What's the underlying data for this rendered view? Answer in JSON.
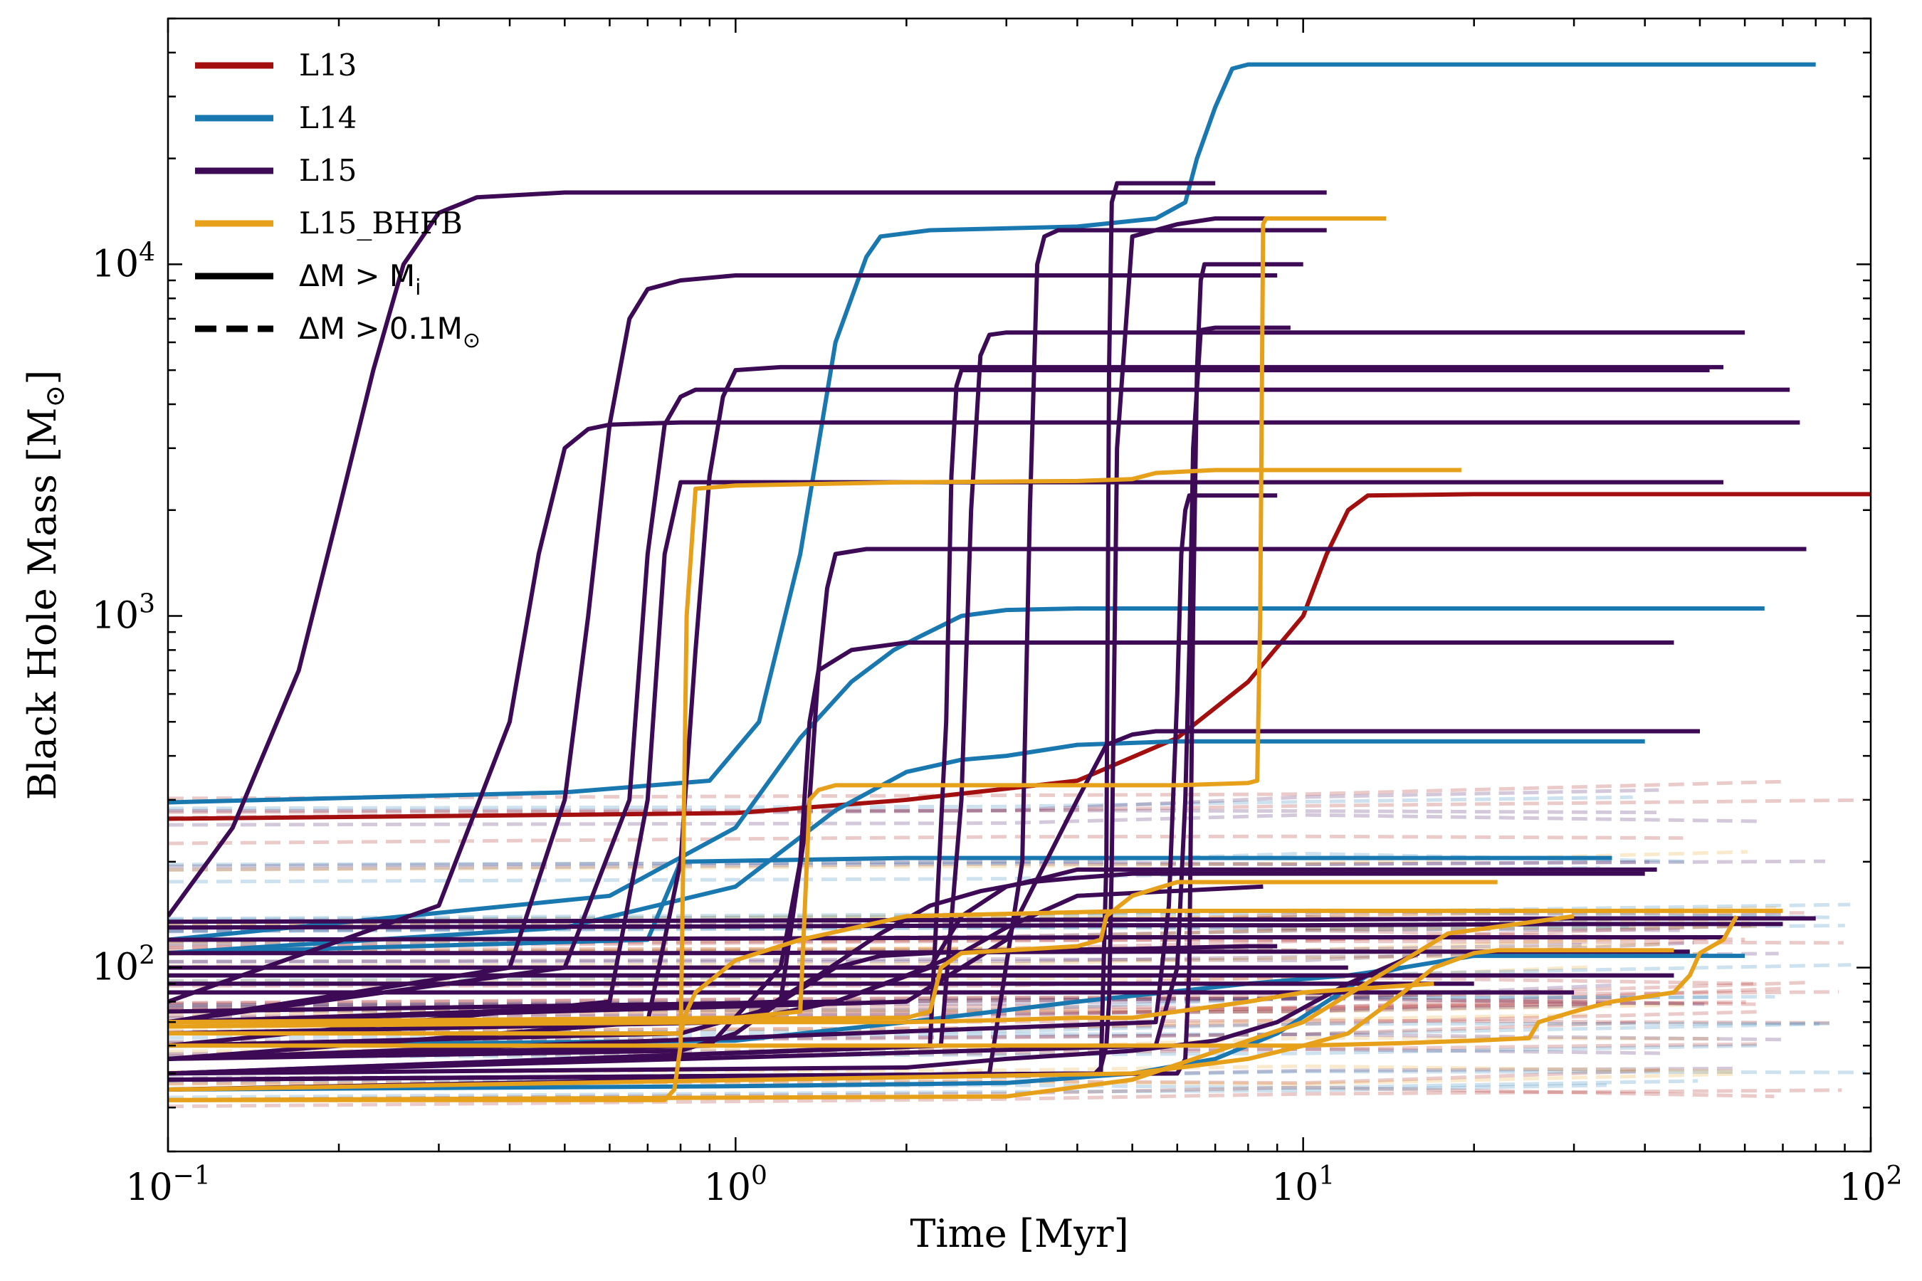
{
  "chart_data": {
    "type": "line",
    "xlabel": "Time [Myr]",
    "ylabel": "Black Hole Mass [M",
    "ylabel_sub": "⊙",
    "ylabel_close": "]",
    "xscale": "log",
    "yscale": "log",
    "xlim": [
      0.1,
      100
    ],
    "ylim": [
      30,
      50000
    ],
    "x_ticks": [
      {
        "value": 0.1,
        "base": "10",
        "exp": "−1"
      },
      {
        "value": 1,
        "base": "10",
        "exp": "0"
      },
      {
        "value": 10,
        "base": "10",
        "exp": "1"
      },
      {
        "value": 100,
        "base": "10",
        "exp": "2"
      }
    ],
    "y_ticks": [
      {
        "value": 100,
        "base": "10",
        "exp": "2"
      },
      {
        "value": 1000,
        "base": "10",
        "exp": "3"
      },
      {
        "value": 10000,
        "base": "10",
        "exp": "4"
      }
    ],
    "grid": false,
    "legend_position": "top-left",
    "legend": [
      {
        "label": "L13",
        "color": "#a30f0f",
        "dash": false,
        "font": "serif"
      },
      {
        "label": "L14",
        "color": "#1a78b0",
        "dash": false,
        "font": "serif"
      },
      {
        "label": "L15",
        "color": "#3d0a55",
        "dash": false,
        "font": "serif"
      },
      {
        "label": "L15_BHFB",
        "color": "#e6a01a",
        "dash": false,
        "font": "serif"
      },
      {
        "label": "ΔM > M",
        "sub": "i",
        "color": "#000000",
        "dash": false,
        "font": "sans"
      },
      {
        "label": "ΔM > 0.1M",
        "sub": "⊙",
        "color": "#000000",
        "dash": true,
        "font": "sans"
      }
    ],
    "colors": {
      "L13": "#a30f0f",
      "L14": "#1a78b0",
      "L15": "#3d0a55",
      "L15_BHFB": "#e6a01a"
    },
    "series": [
      {
        "run": "L13",
        "style": "solid",
        "x": [
          0.1,
          1,
          2,
          4,
          6,
          8,
          10,
          11,
          12,
          13,
          20,
          50,
          100
        ],
        "y": [
          265,
          275,
          300,
          340,
          450,
          650,
          1000,
          1500,
          2000,
          2200,
          2220,
          2220,
          2220
        ]
      },
      {
        "run": "L14",
        "style": "solid",
        "x": [
          0.1,
          0.5,
          0.9,
          1.1,
          1.3,
          1.5,
          1.7,
          1.8,
          2.2,
          4,
          5.5,
          6.2,
          6.5,
          7,
          7.5,
          8,
          80
        ],
        "y": [
          295,
          315,
          340,
          500,
          1500,
          6000,
          10500,
          12000,
          12500,
          12800,
          13500,
          15000,
          20000,
          28000,
          36000,
          37000,
          37000
        ]
      },
      {
        "run": "L14",
        "style": "solid",
        "x": [
          0.1,
          0.6,
          1,
          1.3,
          1.6,
          1.9,
          2.1,
          2.5,
          3,
          4,
          10,
          65
        ],
        "y": [
          120,
          160,
          250,
          450,
          650,
          800,
          870,
          1000,
          1040,
          1050,
          1050,
          1050
        ]
      },
      {
        "run": "L14",
        "style": "solid",
        "x": [
          0.1,
          0.5,
          1,
          1.5,
          2,
          2.5,
          3,
          4,
          6,
          10,
          40
        ],
        "y": [
          110,
          130,
          170,
          280,
          360,
          390,
          400,
          430,
          440,
          440,
          440
        ]
      },
      {
        "run": "L14",
        "style": "solid",
        "x": [
          0.1,
          0.7,
          0.8,
          2,
          4,
          10,
          35
        ],
        "y": [
          110,
          120,
          200,
          205,
          205,
          205,
          205
        ]
      },
      {
        "run": "L14",
        "style": "solid",
        "x": [
          0.1,
          1,
          2,
          4,
          8,
          12,
          15,
          20,
          60
        ],
        "y": [
          60,
          62,
          70,
          80,
          90,
          95,
          100,
          108,
          108
        ]
      },
      {
        "run": "L14",
        "style": "solid",
        "x": [
          0.1,
          1,
          3,
          5,
          7,
          9,
          11,
          13,
          15
        ],
        "y": [
          45,
          46,
          47,
          50,
          55,
          65,
          80,
          95,
          100
        ]
      },
      {
        "run": "L15",
        "style": "solid",
        "x": [
          0.1,
          0.13,
          0.17,
          0.2,
          0.23,
          0.26,
          0.3,
          0.35,
          0.5,
          11
        ],
        "y": [
          140,
          250,
          700,
          2000,
          5000,
          10000,
          14000,
          15500,
          16000,
          16000
        ]
      },
      {
        "run": "L15",
        "style": "solid",
        "x": [
          0.1,
          0.4,
          0.5,
          0.55,
          0.6,
          0.65,
          0.7,
          0.8,
          1,
          9
        ],
        "y": [
          70,
          100,
          300,
          1000,
          3500,
          7000,
          8500,
          9000,
          9300,
          9300
        ]
      },
      {
        "run": "L15",
        "style": "solid",
        "x": [
          0.1,
          0.3,
          0.4,
          0.45,
          0.5,
          0.55,
          0.6,
          0.8,
          1,
          75
        ],
        "y": [
          80,
          150,
          500,
          1500,
          3000,
          3400,
          3500,
          3550,
          3550,
          3550
        ]
      },
      {
        "run": "L15",
        "style": "solid",
        "x": [
          0.1,
          0.5,
          0.65,
          0.7,
          0.75,
          0.8,
          0.85,
          1,
          72
        ],
        "y": [
          70,
          100,
          300,
          1500,
          3500,
          4200,
          4400,
          4400,
          4400
        ]
      },
      {
        "run": "L15",
        "style": "solid",
        "x": [
          0.1,
          0.7,
          0.8,
          0.85,
          0.9,
          0.95,
          1,
          1.2,
          1.5,
          55
        ],
        "y": [
          55,
          70,
          200,
          800,
          2500,
          4200,
          5000,
          5100,
          5100,
          5100
        ]
      },
      {
        "run": "L15",
        "style": "solid",
        "x": [
          0.1,
          0.6,
          0.7,
          0.75,
          0.8,
          55
        ],
        "y": [
          60,
          80,
          300,
          1500,
          2400,
          2400
        ]
      },
      {
        "run": "L15",
        "style": "solid",
        "x": [
          0.1,
          0.9,
          1.2,
          1.3,
          1.35,
          1.4,
          1.5,
          1.6,
          2,
          45
        ],
        "y": [
          55,
          60,
          100,
          200,
          500,
          700,
          750,
          800,
          840,
          840
        ]
      },
      {
        "run": "L15",
        "style": "solid",
        "x": [
          0.1,
          1.2,
          1.35,
          1.4,
          1.45,
          1.5,
          1.7,
          77
        ],
        "y": [
          70,
          80,
          300,
          700,
          1200,
          1500,
          1550,
          1550
        ]
      },
      {
        "run": "L15",
        "style": "solid",
        "x": [
          0.1,
          2.3,
          2.5,
          2.6,
          2.7,
          2.8,
          3,
          60
        ],
        "y": [
          50,
          60,
          300,
          2000,
          5500,
          6300,
          6400,
          6400
        ]
      },
      {
        "run": "L15",
        "style": "solid",
        "x": [
          0.1,
          2.2,
          2.35,
          2.4,
          2.45,
          2.5,
          52
        ],
        "y": [
          50,
          60,
          500,
          2500,
          4500,
          5000,
          5000
        ]
      },
      {
        "run": "L15",
        "style": "solid",
        "x": [
          0.1,
          2.8,
          3.2,
          3.3,
          3.4,
          3.5,
          3.7,
          11
        ],
        "y": [
          45,
          50,
          200,
          2000,
          10000,
          12000,
          12500,
          12500
        ]
      },
      {
        "run": "L15",
        "style": "solid",
        "x": [
          0.1,
          4.4,
          4.5,
          4.55,
          4.6,
          4.7,
          7
        ],
        "y": [
          48,
          50,
          200,
          5000,
          15000,
          17000,
          17000
        ]
      },
      {
        "run": "L15",
        "style": "solid",
        "x": [
          0.1,
          4.3,
          4.4,
          4.5,
          4.55,
          4.6,
          4.7,
          5,
          6,
          7,
          9.5
        ],
        "y": [
          48,
          50,
          52,
          60,
          80,
          200,
          3000,
          12000,
          13000,
          13500,
          13500
        ]
      },
      {
        "run": "L15",
        "style": "solid",
        "x": [
          0.1,
          6,
          6.2,
          6.3,
          6.4,
          6.5,
          6.6,
          6.7,
          7,
          10
        ],
        "y": [
          48,
          50,
          55,
          100,
          1000,
          5000,
          9000,
          10000,
          10000,
          10000
        ]
      },
      {
        "run": "L15",
        "style": "solid",
        "x": [
          0.1,
          5.5,
          6,
          6.2,
          6.3,
          6.4,
          6.6,
          7,
          9.5
        ],
        "y": [
          50,
          60,
          100,
          300,
          800,
          3000,
          6500,
          6600,
          6600
        ]
      },
      {
        "run": "L15",
        "style": "solid",
        "x": [
          0.1,
          5.5,
          5.8,
          6,
          6.1,
          6.2,
          6.3,
          8,
          9
        ],
        "y": [
          55,
          70,
          150,
          600,
          1500,
          2000,
          2200,
          2200,
          2200
        ]
      },
      {
        "run": "L15",
        "style": "solid",
        "x": [
          0.1,
          1.5,
          2.2,
          2.5,
          3,
          3.5,
          4,
          6,
          8,
          42
        ],
        "y": [
          75,
          80,
          100,
          140,
          170,
          180,
          190,
          190,
          190,
          190
        ]
      },
      {
        "run": "L15",
        "style": "solid",
        "x": [
          0.1,
          2,
          3,
          4,
          4.5,
          5,
          5.5,
          6,
          8,
          50
        ],
        "y": [
          70,
          80,
          120,
          300,
          430,
          460,
          470,
          470,
          470,
          470
        ]
      },
      {
        "run": "L15",
        "style": "solid",
        "x": [
          0.1,
          1,
          1.5,
          2,
          2.5,
          3,
          4,
          8.5
        ],
        "y": [
          65,
          70,
          80,
          95,
          110,
          130,
          160,
          170
        ]
      },
      {
        "run": "L15",
        "style": "solid",
        "x": [
          0.1,
          0.8,
          1.1,
          1.4,
          1.8,
          2.2,
          2.7,
          3.3,
          4,
          5,
          40
        ],
        "y": [
          60,
          65,
          75,
          95,
          125,
          150,
          165,
          175,
          180,
          185,
          185
        ]
      },
      {
        "run": "L15",
        "style": "solid",
        "x": [
          0.1,
          0.8,
          1,
          1.2,
          1.5,
          1.8,
          2.2,
          3,
          5,
          8,
          9
        ],
        "y": [
          55,
          58,
          65,
          80,
          100,
          108,
          110,
          112,
          113,
          115,
          115
        ]
      },
      {
        "run": "L15",
        "style": "solid",
        "x": [
          0.1,
          2,
          3,
          5,
          7,
          9,
          12,
          16
        ],
        "y": [
          50,
          52,
          55,
          58,
          62,
          70,
          90,
          110
        ]
      },
      {
        "run": "L15",
        "style": "solid",
        "x": [
          0.1,
          1,
          5,
          10,
          30,
          80
        ],
        "y": [
          135,
          136,
          137,
          137,
          138,
          138
        ]
      },
      {
        "run": "L15",
        "style": "solid",
        "x": [
          0.1,
          1,
          5,
          10,
          30,
          70
        ],
        "y": [
          130,
          131,
          132,
          132,
          133,
          133
        ]
      },
      {
        "run": "L15",
        "style": "solid",
        "x": [
          0.1,
          1,
          5,
          10,
          30,
          55
        ],
        "y": [
          120,
          121,
          122,
          122,
          122,
          122
        ]
      },
      {
        "run": "L15",
        "style": "solid",
        "x": [
          0.1,
          1,
          5,
          10,
          30,
          48
        ],
        "y": [
          110,
          110,
          111,
          111,
          111,
          111
        ]
      },
      {
        "run": "L15",
        "style": "solid",
        "x": [
          0.1,
          1,
          5,
          10,
          30,
          45
        ],
        "y": [
          95,
          95,
          95,
          95,
          95,
          95
        ]
      },
      {
        "run": "L15",
        "style": "solid",
        "x": [
          0.1,
          1,
          5,
          10,
          30
        ],
        "y": [
          85,
          85,
          85,
          85,
          85
        ]
      },
      {
        "run": "L15",
        "style": "solid",
        "x": [
          0.1,
          1,
          5,
          20
        ],
        "y": [
          90,
          90,
          90,
          90
        ]
      },
      {
        "run": "L15",
        "style": "solid",
        "x": [
          0.1,
          1,
          5,
          12
        ],
        "y": [
          100,
          100,
          100,
          100
        ]
      },
      {
        "run": "L15_BHFB",
        "style": "solid",
        "x": [
          0.1,
          0.75,
          0.78,
          0.8,
          0.82,
          0.85,
          1,
          2,
          4,
          5,
          5.5,
          7,
          19
        ],
        "y": [
          42,
          42,
          45,
          60,
          1000,
          2300,
          2350,
          2400,
          2420,
          2450,
          2550,
          2600,
          2600
        ]
      },
      {
        "run": "L15_BHFB",
        "style": "solid",
        "x": [
          0.1,
          1,
          1.3,
          1.35,
          1.4,
          1.5,
          3,
          6,
          8,
          8.3,
          8.4,
          8.5,
          8.6,
          14
        ],
        "y": [
          70,
          72,
          75,
          300,
          320,
          330,
          330,
          330,
          335,
          340,
          1000,
          13000,
          13500,
          13500
        ]
      },
      {
        "run": "L15_BHFB",
        "style": "solid",
        "x": [
          0.1,
          0.8,
          0.82,
          0.85,
          1,
          1.3,
          2,
          5,
          70
        ],
        "y": [
          65,
          65,
          75,
          85,
          105,
          120,
          140,
          145,
          145
        ]
      },
      {
        "run": "L15_BHFB",
        "style": "solid",
        "x": [
          0.1,
          2,
          2.2,
          2.3,
          2.5,
          4,
          4.4,
          4.5,
          5,
          6,
          22
        ],
        "y": [
          70,
          72,
          75,
          100,
          110,
          115,
          120,
          140,
          160,
          175,
          175
        ]
      },
      {
        "run": "L15_BHFB",
        "style": "solid",
        "x": [
          0.1,
          1,
          2,
          3,
          4,
          5,
          6,
          8,
          10,
          17
        ],
        "y": [
          68,
          70,
          70,
          71,
          72,
          72,
          75,
          80,
          85,
          90
        ]
      },
      {
        "run": "L15_BHFB",
        "style": "solid",
        "x": [
          0.1,
          5,
          8,
          10,
          12,
          15,
          17,
          20,
          22,
          45
        ],
        "y": [
          45,
          50,
          55,
          60,
          65,
          85,
          100,
          110,
          112,
          112
        ]
      },
      {
        "run": "L15_BHFB",
        "style": "solid",
        "x": [
          0.1,
          10,
          15,
          20,
          25,
          26,
          30,
          35,
          45,
          48,
          50,
          55,
          58
        ],
        "y": [
          60,
          60,
          61,
          62,
          63,
          70,
          75,
          80,
          85,
          95,
          110,
          120,
          140
        ]
      },
      {
        "run": "L15_BHFB",
        "style": "solid",
        "x": [
          0.1,
          3,
          5,
          10,
          18,
          30
        ],
        "y": [
          42,
          43,
          48,
          70,
          125,
          140
        ]
      }
    ],
    "note_dashed": "Faint dashed tracks (ΔM > 0.1M⊙ sample) between ~40 and ~300 M⊙ extending to ~80–100 Myr."
  }
}
